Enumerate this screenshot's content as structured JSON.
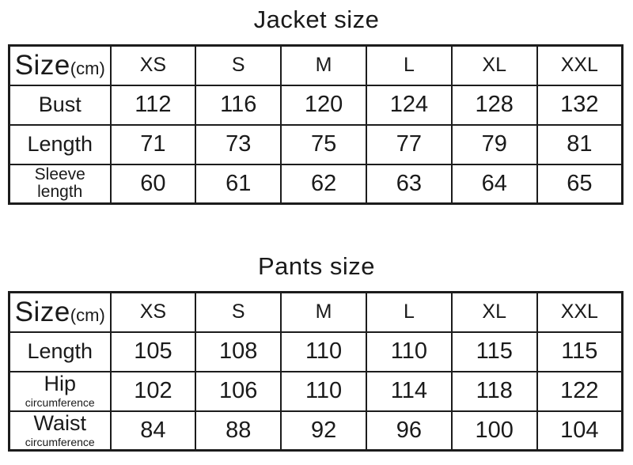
{
  "page": {
    "background_color": "#ffffff",
    "text_color": "#1a1a1a",
    "border_color": "#1c1c1c"
  },
  "tables": [
    {
      "title": "Jacket size",
      "size_label": "Size",
      "unit_label": "(cm)",
      "columns": [
        "XS",
        "S",
        "M",
        "L",
        "XL",
        "XXL"
      ],
      "rows": [
        {
          "label": "Bust",
          "values": [
            "112",
            "116",
            "120",
            "124",
            "128",
            "132"
          ]
        },
        {
          "label": "Length",
          "values": [
            "71",
            "73",
            "75",
            "77",
            "79",
            "81"
          ]
        },
        {
          "label": "Sleeve",
          "label2": "length",
          "values": [
            "60",
            "61",
            "62",
            "63",
            "64",
            "65"
          ]
        }
      ]
    },
    {
      "title": "Pants size",
      "size_label": "Size",
      "unit_label": "(cm)",
      "columns": [
        "XS",
        "S",
        "M",
        "L",
        "XL",
        "XXL"
      ],
      "rows": [
        {
          "label": "Length",
          "values": [
            "105",
            "108",
            "110",
            "110",
            "115",
            "115"
          ]
        },
        {
          "label": "Hip",
          "label2": "circumference",
          "values": [
            "102",
            "106",
            "110",
            "114",
            "118",
            "122"
          ]
        },
        {
          "label": "Waist",
          "label2": "circumference",
          "values": [
            "84",
            "88",
            "92",
            "96",
            "100",
            "104"
          ]
        }
      ]
    }
  ]
}
